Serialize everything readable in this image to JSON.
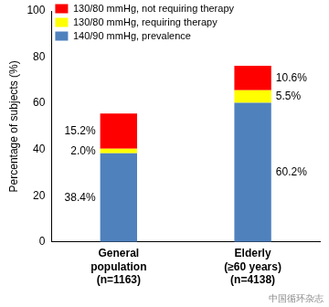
{
  "chart_data": {
    "type": "bar",
    "stacked": true,
    "ylabel": "Percentage of subjects (%)",
    "categories": [
      "General\npopulation\n(n=1163)",
      "Elderly\n(≥60 years)\n(n=4138)"
    ],
    "series": [
      {
        "name": "140/90 mmHg, prevalence",
        "color": "#4f81bd",
        "values": [
          38.4,
          60.2
        ],
        "value_labels": [
          "38.4%",
          "60.2%"
        ]
      },
      {
        "name": "130/80 mmHg, requiring therapy",
        "color": "#ffff00",
        "values": [
          2.0,
          5.5
        ],
        "value_labels": [
          "2.0%",
          "5.5%"
        ]
      },
      {
        "name": "130/80 mmHg, not requiring therapy",
        "color": "#ff0000",
        "values": [
          15.2,
          10.6
        ],
        "value_labels": [
          "15.2%",
          "10.6%"
        ]
      }
    ],
    "ylim": [
      0,
      100
    ],
    "yticks": [
      0,
      20,
      40,
      60,
      80,
      100
    ],
    "grid": false,
    "legend": "upper left",
    "data_labels": true,
    "annotations": [
      "中国循环杂志"
    ]
  }
}
